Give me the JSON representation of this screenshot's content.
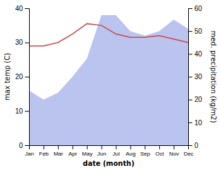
{
  "chart_data": {
    "type": "line",
    "categories": [
      "Jan",
      "Feb",
      "Mar",
      "Apr",
      "May",
      "Jun",
      "Jul",
      "Aug",
      "Sep",
      "Oct",
      "Nov",
      "Dec"
    ],
    "series": [
      {
        "type": "area",
        "axis": "y2",
        "color": "#bbc4ee",
        "values": [
          24.0,
          20.0,
          23.0,
          30.0,
          38.0,
          57.0,
          57.0,
          50.0,
          48.0,
          50.0,
          55.0,
          51.0
        ]
      },
      {
        "type": "line",
        "color": "#cc4444",
        "values": [
          29.0,
          29.0,
          30.0,
          32.5,
          35.5,
          35.0,
          32.5,
          31.5,
          31.5,
          32.0,
          31.0,
          30.0
        ]
      }
    ],
    "xlabel": "date (month)",
    "ylabel": "max temp (C)",
    "y2label": "med. precipitation (kg/m2)",
    "ylim": [
      0,
      40
    ],
    "yticks": [
      0,
      10,
      20,
      30,
      40
    ],
    "y2lim": [
      0,
      60
    ],
    "y2ticks": [
      0,
      10,
      20,
      30,
      40,
      50,
      60
    ],
    "grid": false
  }
}
